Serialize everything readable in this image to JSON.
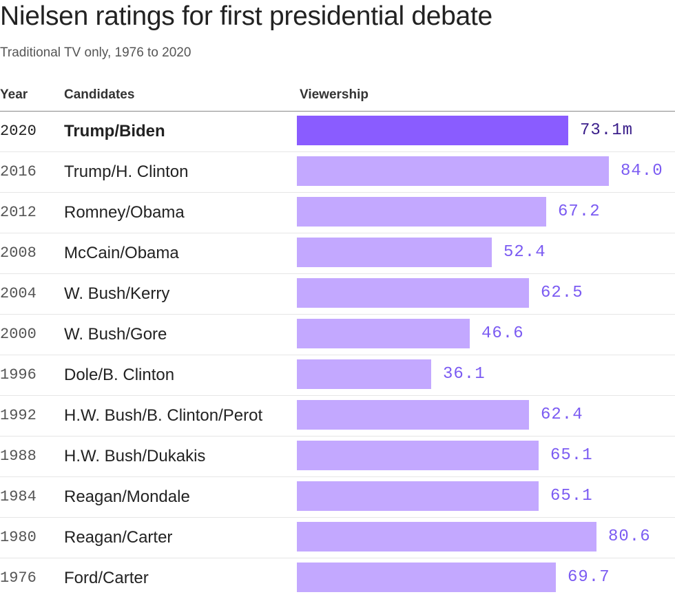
{
  "title": "Nielsen ratings for first presidential debate",
  "subtitle": "Traditional TV only, 1976 to 2020",
  "headers": {
    "year": "Year",
    "candidates": "Candidates",
    "viewership": "Viewership"
  },
  "colors": {
    "highlight_bar": "#8a5cff",
    "bar": "#c3a8ff",
    "value_text": "#7b5bf2",
    "highlight_value_text": "#3a1e8a"
  },
  "chart_data": {
    "type": "bar",
    "orientation": "horizontal",
    "xlim": [
      0,
      84.0
    ],
    "unit": "m",
    "highlight": "2020",
    "rows": [
      {
        "year": "2020",
        "candidates": "Trump/Biden",
        "value": 73.1,
        "label": "73.1m"
      },
      {
        "year": "2016",
        "candidates": "Trump/H. Clinton",
        "value": 84.0,
        "label": "84.0"
      },
      {
        "year": "2012",
        "candidates": "Romney/Obama",
        "value": 67.2,
        "label": "67.2"
      },
      {
        "year": "2008",
        "candidates": "McCain/Obama",
        "value": 52.4,
        "label": "52.4"
      },
      {
        "year": "2004",
        "candidates": "W. Bush/Kerry",
        "value": 62.5,
        "label": "62.5"
      },
      {
        "year": "2000",
        "candidates": "W. Bush/Gore",
        "value": 46.6,
        "label": "46.6"
      },
      {
        "year": "1996",
        "candidates": "Dole/B. Clinton",
        "value": 36.1,
        "label": "36.1"
      },
      {
        "year": "1992",
        "candidates": "H.W. Bush/B. Clinton/Perot",
        "value": 62.4,
        "label": "62.4"
      },
      {
        "year": "1988",
        "candidates": "H.W. Bush/Dukakis",
        "value": 65.1,
        "label": "65.1"
      },
      {
        "year": "1984",
        "candidates": "Reagan/Mondale",
        "value": 65.1,
        "label": "65.1"
      },
      {
        "year": "1980",
        "candidates": "Reagan/Carter",
        "value": 80.6,
        "label": "80.6"
      },
      {
        "year": "1976",
        "candidates": "Ford/Carter",
        "value": 69.7,
        "label": "69.7"
      }
    ]
  }
}
